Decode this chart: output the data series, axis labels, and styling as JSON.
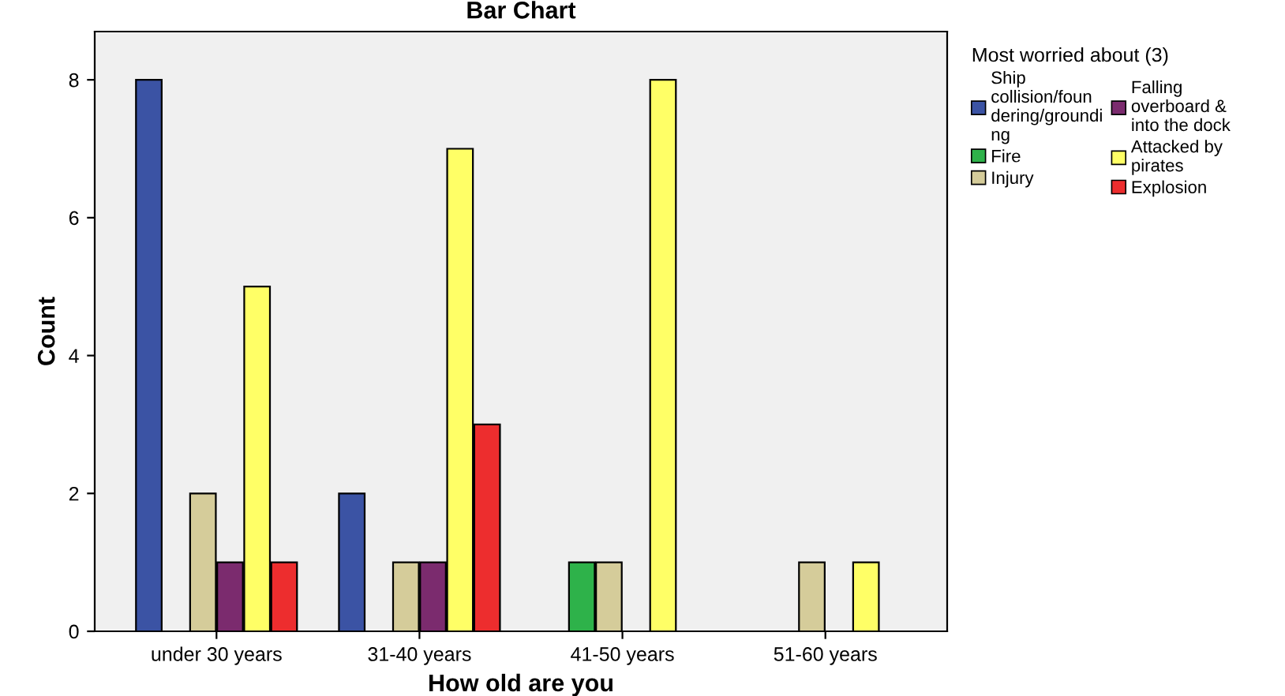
{
  "chart_data": {
    "type": "bar",
    "title": "Bar Chart",
    "xlabel": "How old are you",
    "ylabel": "Count",
    "legend_title": "Most worried about (3)",
    "categories": [
      "under 30 years",
      "31-40 years",
      "41-50 years",
      "51-60 years"
    ],
    "series": [
      {
        "name": "Ship collision/foundering/grounding",
        "color": "#3b53a4",
        "values": [
          8,
          2,
          null,
          null
        ]
      },
      {
        "name": "Fire",
        "color": "#2eb24a",
        "values": [
          null,
          null,
          1,
          null
        ]
      },
      {
        "name": "Injury",
        "color": "#d5cc9a",
        "values": [
          2,
          1,
          1,
          1
        ]
      },
      {
        "name": "Falling overboard & into the dock",
        "color": "#7b2b6e",
        "values": [
          1,
          1,
          null,
          null
        ]
      },
      {
        "name": "Attacked by pirates",
        "color": "#ffff66",
        "values": [
          5,
          7,
          8,
          1
        ]
      },
      {
        "name": "Explosion",
        "color": "#ed2d2e",
        "values": [
          1,
          3,
          null,
          null
        ]
      }
    ],
    "ylim": [
      0,
      8.7
    ],
    "yticks": [
      0,
      2,
      4,
      6,
      8
    ],
    "grid": false,
    "legend": "right"
  }
}
